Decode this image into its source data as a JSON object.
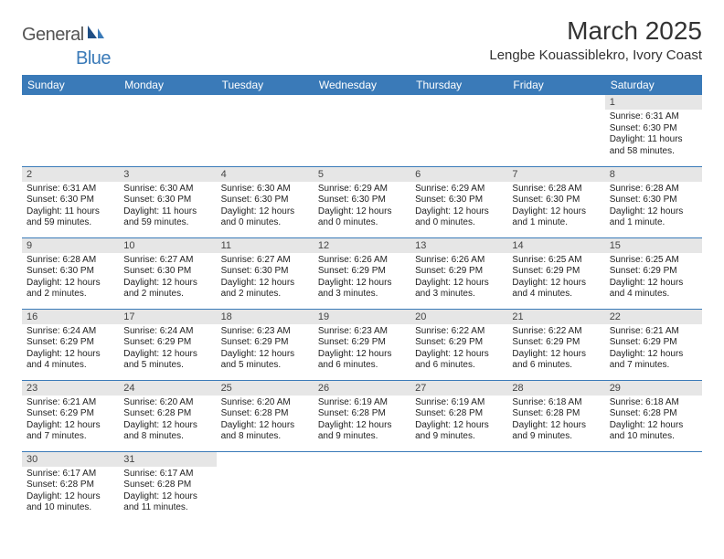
{
  "brand": {
    "part1": "General",
    "part2": "Blue"
  },
  "title": "March 2025",
  "location": "Lengbe Kouassiblekro, Ivory Coast",
  "colors": {
    "header_bg": "#3a7ab8",
    "header_fg": "#ffffff",
    "daynum_bg": "#e6e6e6",
    "row_border": "#3a7ab8",
    "brand_gray": "#555555",
    "brand_blue": "#3a7ab8"
  },
  "daynames": [
    "Sunday",
    "Monday",
    "Tuesday",
    "Wednesday",
    "Thursday",
    "Friday",
    "Saturday"
  ],
  "weeks": [
    [
      {
        "n": "",
        "sr": "",
        "ss": "",
        "dl": ""
      },
      {
        "n": "",
        "sr": "",
        "ss": "",
        "dl": ""
      },
      {
        "n": "",
        "sr": "",
        "ss": "",
        "dl": ""
      },
      {
        "n": "",
        "sr": "",
        "ss": "",
        "dl": ""
      },
      {
        "n": "",
        "sr": "",
        "ss": "",
        "dl": ""
      },
      {
        "n": "",
        "sr": "",
        "ss": "",
        "dl": ""
      },
      {
        "n": "1",
        "sr": "Sunrise: 6:31 AM",
        "ss": "Sunset: 6:30 PM",
        "dl": "Daylight: 11 hours and 58 minutes."
      }
    ],
    [
      {
        "n": "2",
        "sr": "Sunrise: 6:31 AM",
        "ss": "Sunset: 6:30 PM",
        "dl": "Daylight: 11 hours and 59 minutes."
      },
      {
        "n": "3",
        "sr": "Sunrise: 6:30 AM",
        "ss": "Sunset: 6:30 PM",
        "dl": "Daylight: 11 hours and 59 minutes."
      },
      {
        "n": "4",
        "sr": "Sunrise: 6:30 AM",
        "ss": "Sunset: 6:30 PM",
        "dl": "Daylight: 12 hours and 0 minutes."
      },
      {
        "n": "5",
        "sr": "Sunrise: 6:29 AM",
        "ss": "Sunset: 6:30 PM",
        "dl": "Daylight: 12 hours and 0 minutes."
      },
      {
        "n": "6",
        "sr": "Sunrise: 6:29 AM",
        "ss": "Sunset: 6:30 PM",
        "dl": "Daylight: 12 hours and 0 minutes."
      },
      {
        "n": "7",
        "sr": "Sunrise: 6:28 AM",
        "ss": "Sunset: 6:30 PM",
        "dl": "Daylight: 12 hours and 1 minute."
      },
      {
        "n": "8",
        "sr": "Sunrise: 6:28 AM",
        "ss": "Sunset: 6:30 PM",
        "dl": "Daylight: 12 hours and 1 minute."
      }
    ],
    [
      {
        "n": "9",
        "sr": "Sunrise: 6:28 AM",
        "ss": "Sunset: 6:30 PM",
        "dl": "Daylight: 12 hours and 2 minutes."
      },
      {
        "n": "10",
        "sr": "Sunrise: 6:27 AM",
        "ss": "Sunset: 6:30 PM",
        "dl": "Daylight: 12 hours and 2 minutes."
      },
      {
        "n": "11",
        "sr": "Sunrise: 6:27 AM",
        "ss": "Sunset: 6:30 PM",
        "dl": "Daylight: 12 hours and 2 minutes."
      },
      {
        "n": "12",
        "sr": "Sunrise: 6:26 AM",
        "ss": "Sunset: 6:29 PM",
        "dl": "Daylight: 12 hours and 3 minutes."
      },
      {
        "n": "13",
        "sr": "Sunrise: 6:26 AM",
        "ss": "Sunset: 6:29 PM",
        "dl": "Daylight: 12 hours and 3 minutes."
      },
      {
        "n": "14",
        "sr": "Sunrise: 6:25 AM",
        "ss": "Sunset: 6:29 PM",
        "dl": "Daylight: 12 hours and 4 minutes."
      },
      {
        "n": "15",
        "sr": "Sunrise: 6:25 AM",
        "ss": "Sunset: 6:29 PM",
        "dl": "Daylight: 12 hours and 4 minutes."
      }
    ],
    [
      {
        "n": "16",
        "sr": "Sunrise: 6:24 AM",
        "ss": "Sunset: 6:29 PM",
        "dl": "Daylight: 12 hours and 4 minutes."
      },
      {
        "n": "17",
        "sr": "Sunrise: 6:24 AM",
        "ss": "Sunset: 6:29 PM",
        "dl": "Daylight: 12 hours and 5 minutes."
      },
      {
        "n": "18",
        "sr": "Sunrise: 6:23 AM",
        "ss": "Sunset: 6:29 PM",
        "dl": "Daylight: 12 hours and 5 minutes."
      },
      {
        "n": "19",
        "sr": "Sunrise: 6:23 AM",
        "ss": "Sunset: 6:29 PM",
        "dl": "Daylight: 12 hours and 6 minutes."
      },
      {
        "n": "20",
        "sr": "Sunrise: 6:22 AM",
        "ss": "Sunset: 6:29 PM",
        "dl": "Daylight: 12 hours and 6 minutes."
      },
      {
        "n": "21",
        "sr": "Sunrise: 6:22 AM",
        "ss": "Sunset: 6:29 PM",
        "dl": "Daylight: 12 hours and 6 minutes."
      },
      {
        "n": "22",
        "sr": "Sunrise: 6:21 AM",
        "ss": "Sunset: 6:29 PM",
        "dl": "Daylight: 12 hours and 7 minutes."
      }
    ],
    [
      {
        "n": "23",
        "sr": "Sunrise: 6:21 AM",
        "ss": "Sunset: 6:29 PM",
        "dl": "Daylight: 12 hours and 7 minutes."
      },
      {
        "n": "24",
        "sr": "Sunrise: 6:20 AM",
        "ss": "Sunset: 6:28 PM",
        "dl": "Daylight: 12 hours and 8 minutes."
      },
      {
        "n": "25",
        "sr": "Sunrise: 6:20 AM",
        "ss": "Sunset: 6:28 PM",
        "dl": "Daylight: 12 hours and 8 minutes."
      },
      {
        "n": "26",
        "sr": "Sunrise: 6:19 AM",
        "ss": "Sunset: 6:28 PM",
        "dl": "Daylight: 12 hours and 9 minutes."
      },
      {
        "n": "27",
        "sr": "Sunrise: 6:19 AM",
        "ss": "Sunset: 6:28 PM",
        "dl": "Daylight: 12 hours and 9 minutes."
      },
      {
        "n": "28",
        "sr": "Sunrise: 6:18 AM",
        "ss": "Sunset: 6:28 PM",
        "dl": "Daylight: 12 hours and 9 minutes."
      },
      {
        "n": "29",
        "sr": "Sunrise: 6:18 AM",
        "ss": "Sunset: 6:28 PM",
        "dl": "Daylight: 12 hours and 10 minutes."
      }
    ],
    [
      {
        "n": "30",
        "sr": "Sunrise: 6:17 AM",
        "ss": "Sunset: 6:28 PM",
        "dl": "Daylight: 12 hours and 10 minutes."
      },
      {
        "n": "31",
        "sr": "Sunrise: 6:17 AM",
        "ss": "Sunset: 6:28 PM",
        "dl": "Daylight: 12 hours and 11 minutes."
      },
      {
        "n": "",
        "sr": "",
        "ss": "",
        "dl": ""
      },
      {
        "n": "",
        "sr": "",
        "ss": "",
        "dl": ""
      },
      {
        "n": "",
        "sr": "",
        "ss": "",
        "dl": ""
      },
      {
        "n": "",
        "sr": "",
        "ss": "",
        "dl": ""
      },
      {
        "n": "",
        "sr": "",
        "ss": "",
        "dl": ""
      }
    ]
  ]
}
